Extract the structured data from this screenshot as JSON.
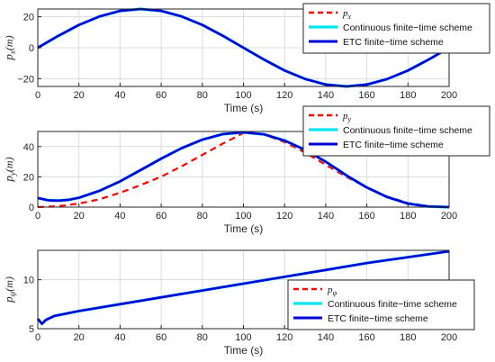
{
  "colors": {
    "reference": "#ff0000",
    "continuous": "#00e5ee",
    "etc": "#0000d6",
    "grid": "#dcdcdc",
    "axis": "#262626"
  },
  "chart_data": [
    {
      "type": "line",
      "xlabel": "Time (s)",
      "ylabel": {
        "symbol": "p",
        "sub": "x",
        "unit": "(m)"
      },
      "xlim": [
        0,
        200
      ],
      "ylim": [
        -25,
        25
      ],
      "xticks": [
        "0",
        "20",
        "40",
        "60",
        "80",
        "100",
        "120",
        "140",
        "160",
        "180",
        "200"
      ],
      "yticks": [
        "-20",
        "0",
        "20"
      ],
      "ytick_values": [
        -20,
        0,
        20
      ],
      "grid": true,
      "legend_position": "top-right",
      "legend": [
        {
          "symbol": "p",
          "sub": "x",
          "label": ""
        },
        {
          "label": "Continuous finite−time scheme"
        },
        {
          "label": "ETC finite−time scheme"
        }
      ],
      "series": [
        {
          "role": "reference",
          "x": [
            0,
            10,
            20,
            30,
            40,
            50,
            60,
            70,
            80,
            90,
            100,
            110,
            120,
            130,
            140,
            150,
            160,
            170,
            180,
            190,
            200
          ],
          "y": [
            0,
            7.7,
            14.7,
            20.2,
            23.8,
            25.0,
            23.8,
            20.2,
            14.7,
            7.7,
            0,
            -7.7,
            -14.7,
            -20.2,
            -23.8,
            -25.0,
            -23.8,
            -20.2,
            -14.7,
            -7.7,
            0
          ]
        },
        {
          "role": "continuous",
          "x": [
            0,
            10,
            20,
            30,
            40,
            50,
            60,
            70,
            80,
            90,
            100,
            110,
            120,
            130,
            140,
            150,
            160,
            170,
            180,
            190,
            200
          ],
          "y": [
            0,
            7.7,
            14.7,
            20.2,
            23.8,
            25.0,
            23.8,
            20.2,
            14.7,
            7.7,
            0,
            -7.7,
            -14.7,
            -20.2,
            -23.8,
            -25.0,
            -23.8,
            -20.2,
            -14.7,
            -7.7,
            0
          ]
        },
        {
          "role": "etc",
          "x": [
            0,
            10,
            20,
            30,
            40,
            50,
            60,
            70,
            80,
            90,
            100,
            110,
            120,
            130,
            140,
            150,
            160,
            170,
            180,
            190,
            200
          ],
          "y": [
            0,
            7.7,
            14.7,
            20.2,
            23.8,
            25.0,
            23.8,
            20.2,
            14.7,
            7.7,
            0,
            -7.7,
            -14.7,
            -20.2,
            -23.8,
            -25.0,
            -23.8,
            -20.2,
            -14.7,
            -7.7,
            0
          ]
        }
      ]
    },
    {
      "type": "line",
      "xlabel": "Time (s)",
      "ylabel": {
        "symbol": "p",
        "sub": "y",
        "unit": "(m)"
      },
      "xlim": [
        0,
        200
      ],
      "ylim": [
        0,
        50
      ],
      "xticks": [
        "0",
        "20",
        "40",
        "60",
        "80",
        "100",
        "120",
        "140",
        "160",
        "180",
        "200"
      ],
      "yticks": [
        "0",
        "20",
        "40"
      ],
      "ytick_values": [
        0,
        20,
        40
      ],
      "grid": true,
      "legend_position": "top-right",
      "legend": [
        {
          "symbol": "p",
          "sub": "y",
          "label": ""
        },
        {
          "label": "Continuous finite−time scheme"
        },
        {
          "label": "ETC finite−time scheme"
        }
      ],
      "series": [
        {
          "role": "reference",
          "x": [
            0,
            10,
            20,
            30,
            40,
            50,
            60,
            70,
            80,
            90,
            100,
            110,
            120,
            130,
            140,
            150,
            160,
            170,
            180,
            190,
            200
          ],
          "y": [
            0,
            0.6,
            2.4,
            5.2,
            9.5,
            14.6,
            20.2,
            27.0,
            34.5,
            42.0,
            49.0,
            48.0,
            43.0,
            36.0,
            28.0,
            20.0,
            13.0,
            7.0,
            2.8,
            0.6,
            0
          ]
        },
        {
          "role": "continuous",
          "x": [
            0,
            5,
            10,
            15,
            20,
            30,
            40,
            50,
            60,
            70,
            80,
            90,
            100,
            110,
            120,
            130,
            140,
            150,
            160,
            170,
            180,
            190,
            200
          ],
          "y": [
            6,
            4.5,
            4.3,
            4.8,
            6.2,
            10.8,
            17.0,
            24.5,
            32.0,
            39.0,
            44.6,
            48.3,
            49.4,
            48.1,
            44.0,
            37.8,
            30.0,
            21.0,
            13.0,
            6.6,
            2.3,
            0.4,
            0
          ]
        },
        {
          "role": "etc",
          "x": [
            0,
            5,
            10,
            15,
            20,
            30,
            40,
            50,
            60,
            70,
            80,
            90,
            100,
            110,
            120,
            130,
            140,
            150,
            160,
            170,
            180,
            190,
            200
          ],
          "y": [
            6,
            4.5,
            4.3,
            4.8,
            6.2,
            10.8,
            17.0,
            24.5,
            32.0,
            39.0,
            44.6,
            48.3,
            49.4,
            48.1,
            44.0,
            37.8,
            30.0,
            21.0,
            13.0,
            6.6,
            2.3,
            0.4,
            0
          ]
        }
      ]
    },
    {
      "type": "line",
      "xlabel": "Time (s)",
      "ylabel": {
        "symbol": "p",
        "sub": "ψ",
        "unit": "(m)"
      },
      "xlim": [
        0,
        200
      ],
      "ylim": [
        5,
        13
      ],
      "xticks": [
        "0",
        "20",
        "40",
        "60",
        "80",
        "100",
        "120",
        "140",
        "160",
        "180",
        "200"
      ],
      "yticks": [
        "5",
        "10"
      ],
      "ytick_values": [
        5,
        10
      ],
      "grid": true,
      "legend_position": "bottom-right",
      "legend": [
        {
          "symbol": "p",
          "sub": "ψ",
          "label": ""
        },
        {
          "label": "Continuous finite−time scheme"
        },
        {
          "label": "ETC finite−time scheme"
        }
      ],
      "series": [
        {
          "role": "reference",
          "x": [
            0,
            2,
            4,
            8,
            20,
            40,
            60,
            80,
            100,
            120,
            140,
            160,
            180,
            200
          ],
          "y": [
            6.0,
            5.5,
            5.9,
            6.3,
            6.8,
            7.5,
            8.2,
            8.9,
            9.6,
            10.3,
            11.0,
            11.7,
            12.3,
            12.9
          ]
        },
        {
          "role": "continuous",
          "x": [
            0,
            2,
            4,
            8,
            20,
            40,
            60,
            80,
            100,
            120,
            140,
            160,
            180,
            200
          ],
          "y": [
            6.0,
            5.5,
            5.9,
            6.3,
            6.8,
            7.5,
            8.2,
            8.9,
            9.6,
            10.3,
            11.0,
            11.7,
            12.3,
            12.9
          ]
        },
        {
          "role": "etc",
          "x": [
            0,
            2,
            4,
            8,
            20,
            40,
            60,
            80,
            100,
            120,
            140,
            160,
            180,
            200
          ],
          "y": [
            6.0,
            5.5,
            5.9,
            6.3,
            6.8,
            7.5,
            8.2,
            8.9,
            9.6,
            10.3,
            11.0,
            11.7,
            12.3,
            12.9
          ]
        }
      ]
    }
  ]
}
